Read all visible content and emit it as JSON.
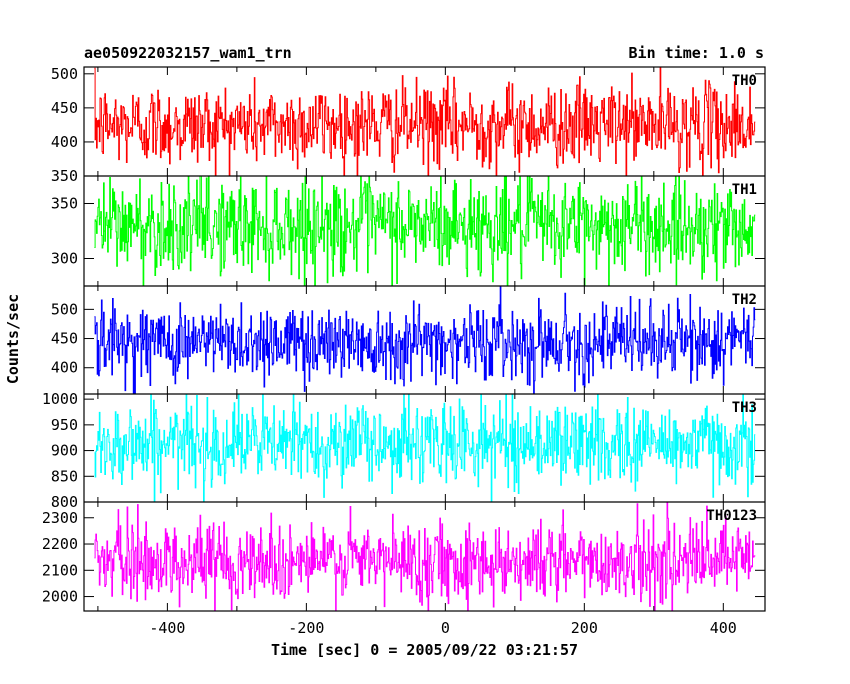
{
  "header": {
    "title": "ae050922032157_wam1_trn",
    "bin_time": "Bin time: 1.0 s"
  },
  "chart_data": {
    "type": "line",
    "title": "ae050922032157_wam1_trn",
    "xlabel": "Time [sec] 0 = 2005/09/22 03:21:57",
    "ylabel": "Counts/sec",
    "xlim": [
      -520,
      460
    ],
    "x_ticks": [
      -400,
      -200,
      0,
      200,
      400
    ],
    "x_range": [
      -505,
      445
    ],
    "grid": false,
    "series": [
      {
        "name": "TH0",
        "color": "#ff0000",
        "ylim": [
          350,
          510
        ],
        "y_ticks": [
          350,
          400,
          450,
          500
        ],
        "mean": 425,
        "sd": 30,
        "min": 350,
        "max": 510
      },
      {
        "name": "TH1",
        "color": "#00ff00",
        "ylim": [
          275,
          375
        ],
        "y_ticks": [
          300,
          350
        ],
        "mean": 330,
        "sd": 22,
        "min": 275,
        "max": 375
      },
      {
        "name": "TH2",
        "color": "#0000ff",
        "ylim": [
          355,
          540
        ],
        "y_ticks": [
          400,
          450,
          500
        ],
        "mean": 445,
        "sd": 32,
        "min": 355,
        "max": 540
      },
      {
        "name": "TH3",
        "color": "#00ffff",
        "ylim": [
          800,
          1010
        ],
        "y_ticks": [
          800,
          850,
          900,
          950,
          1000
        ],
        "mean": 915,
        "sd": 40,
        "min": 800,
        "max": 1010
      },
      {
        "name": "TH0123",
        "color": "#ff00ff",
        "ylim": [
          1945,
          2360
        ],
        "y_ticks": [
          2000,
          2100,
          2200,
          2300
        ],
        "mean": 2135,
        "sd": 75,
        "min": 1945,
        "max": 2360
      }
    ]
  }
}
